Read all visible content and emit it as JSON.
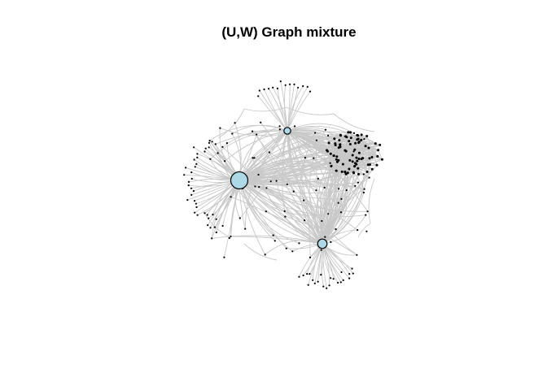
{
  "figure": {
    "title": "(U,W) Graph mixture"
  },
  "colors": {
    "background": "#ffffff",
    "edge": "#c8c8c8",
    "hub_fill": "#add8e6",
    "hub_stroke": "#000000",
    "node": "#000000"
  },
  "graph": {
    "hub_count": 3,
    "hubs": [
      {
        "name": "hub-large",
        "size": "large"
      },
      {
        "name": "hub-top",
        "size": "small"
      },
      {
        "name": "hub-bottom",
        "size": "medium"
      }
    ],
    "dense_cluster": "right"
  }
}
